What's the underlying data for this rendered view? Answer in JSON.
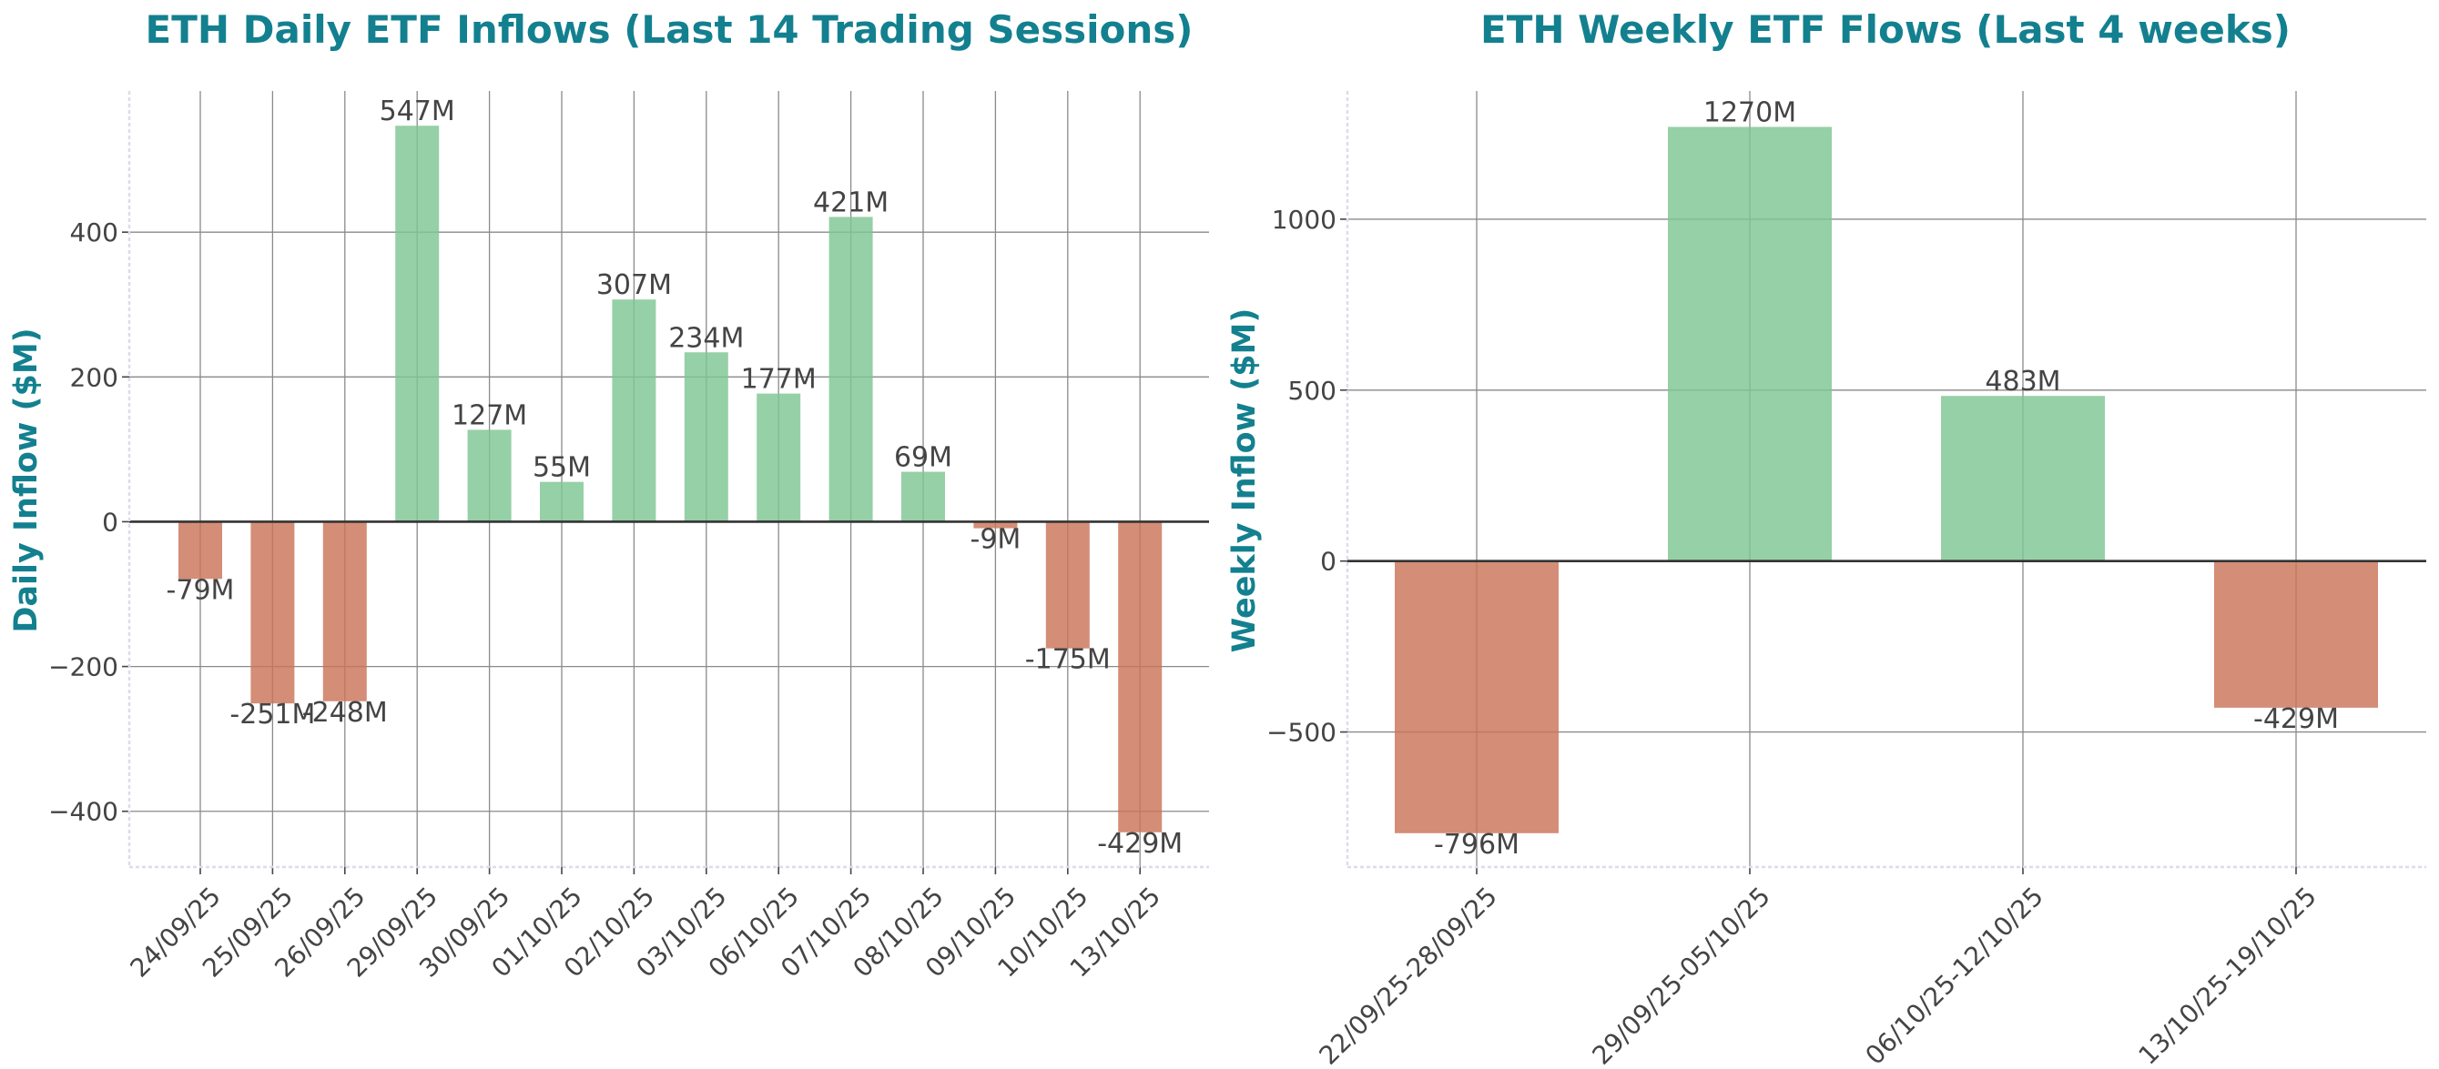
{
  "colors": {
    "positive": "#7fc693",
    "negative": "#cb7458",
    "accent": "#13808f"
  },
  "chart_data": [
    {
      "type": "bar",
      "title": "ETH Daily ETF Inflows (Last 14 Trading Sessions)",
      "xlabel": "",
      "ylabel": "Daily Inflow ($M)",
      "categories": [
        "24/09/25",
        "25/09/25",
        "26/09/25",
        "29/09/25",
        "30/09/25",
        "01/10/25",
        "02/10/25",
        "03/10/25",
        "06/10/25",
        "07/10/25",
        "08/10/25",
        "09/10/25",
        "10/10/25",
        "13/10/25"
      ],
      "values": [
        -79,
        -251,
        -248,
        547,
        127,
        55,
        307,
        234,
        177,
        421,
        69,
        -9,
        -175,
        -429
      ],
      "labels": [
        "-79M",
        "-251M",
        "-248M",
        "547M",
        "127M",
        "55M",
        "307M",
        "234M",
        "177M",
        "421M",
        "69M",
        "-9M",
        "-175M",
        "-429M"
      ],
      "yticks": [
        -400,
        -200,
        0,
        200,
        400
      ],
      "ytick_labels": [
        "−400",
        "−200",
        "0",
        "200",
        "400"
      ],
      "ylim": [
        -477,
        595
      ],
      "grid": true
    },
    {
      "type": "bar",
      "title": "ETH Weekly ETF Flows (Last 4 weeks)",
      "xlabel": "",
      "ylabel": "Weekly Inflow ($M)",
      "categories": [
        "22/09/25-28/09/25",
        "29/09/25-05/10/25",
        "06/10/25-12/10/25",
        "13/10/25-19/10/25"
      ],
      "values": [
        -796,
        1270,
        483,
        -429
      ],
      "labels": [
        "-796M",
        "1270M",
        "483M",
        "-429M"
      ],
      "yticks": [
        -500,
        0,
        500,
        1000
      ],
      "ytick_labels": [
        "−500",
        "0",
        "500",
        "1000"
      ],
      "ylim": [
        -895,
        1375
      ],
      "grid": true
    }
  ]
}
